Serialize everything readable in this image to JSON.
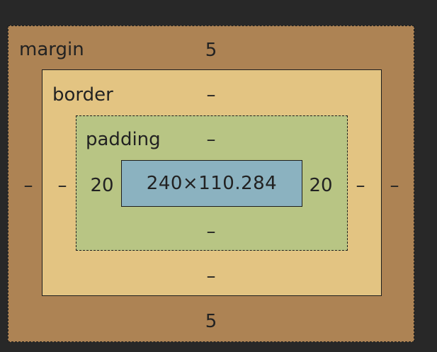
{
  "box_model": {
    "margin": {
      "label": "margin",
      "top": "5",
      "bottom": "5",
      "left": "–",
      "right": "–"
    },
    "border": {
      "label": "border",
      "top": "–",
      "bottom": "–",
      "left": "–",
      "right": "–"
    },
    "padding": {
      "label": "padding",
      "top": "–",
      "bottom": "–",
      "left": "20",
      "right": "20"
    },
    "content": {
      "size": "240×110.284"
    }
  },
  "colors": {
    "background": "#282828",
    "margin": "#ad8354",
    "border": "#e3c482",
    "padding": "#b8c584",
    "content": "#8bb2c0"
  }
}
